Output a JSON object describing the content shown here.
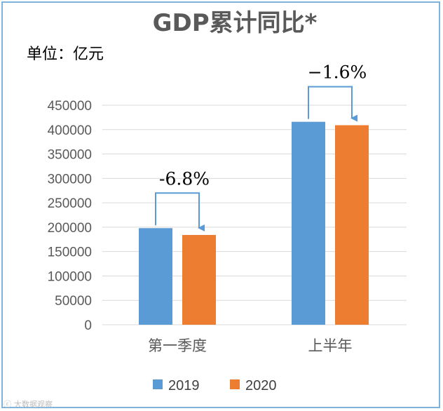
{
  "chart_data": {
    "type": "bar",
    "title": "GDP累计同比*",
    "unit_label": "单位：亿元",
    "categories": [
      "第一季度",
      "上半年"
    ],
    "series": [
      {
        "name": "2019",
        "color": "#5b9bd5",
        "values": [
          198000,
          416000
        ]
      },
      {
        "name": "2020",
        "color": "#ed7d31",
        "values": [
          184000,
          409000
        ]
      }
    ],
    "ylim": [
      0,
      450000
    ],
    "yticks": [
      0,
      50000,
      100000,
      150000,
      200000,
      250000,
      300000,
      350000,
      400000,
      450000
    ],
    "grid": true,
    "legend_position": "bottom",
    "annotations": [
      {
        "category_index": 0,
        "text": "-6.8%"
      },
      {
        "category_index": 1,
        "text": "−1.6%"
      }
    ]
  },
  "watermark": "大数据观察",
  "colors": {
    "grid": "#d9d9d9",
    "arrow": "#5b9bd5",
    "border": "#7fb3dc"
  }
}
